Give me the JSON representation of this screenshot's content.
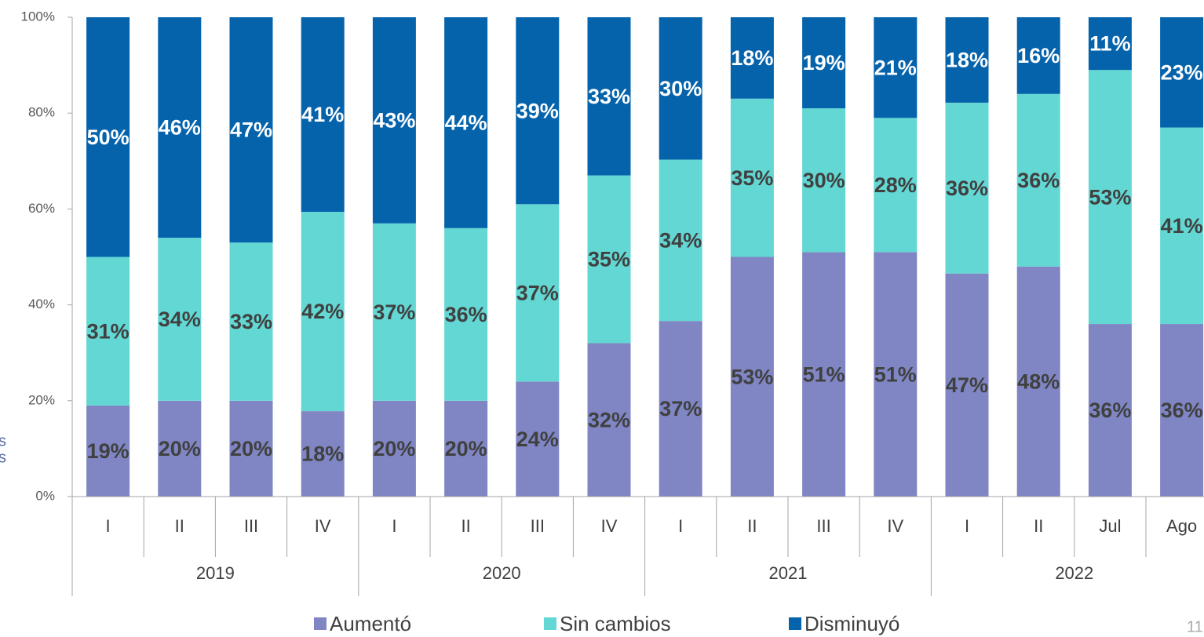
{
  "chart_data": {
    "type": "bar",
    "stacked": "percent",
    "categories": [
      "I",
      "II",
      "III",
      "IV",
      "I",
      "II",
      "III",
      "IV",
      "I",
      "II",
      "III",
      "IV",
      "I",
      "II",
      "Jul",
      "Ago"
    ],
    "group_labels": [
      "2019",
      "2020",
      "2021",
      "2022"
    ],
    "group_sizes": [
      4,
      4,
      4,
      4
    ],
    "series": [
      {
        "name": "Aumentó",
        "color": "#7f86c3",
        "label_color": "#404040",
        "values": [
          19,
          20,
          20,
          18,
          20,
          20,
          24,
          32,
          37,
          53,
          51,
          51,
          47,
          48,
          36,
          36
        ],
        "value_labels": [
          "19%",
          "20%",
          "20%",
          "18%",
          "20%",
          "20%",
          "24%",
          "32%",
          "37%",
          "53%",
          "51%",
          "51%",
          "47%",
          "48%",
          "36%",
          "36%"
        ]
      },
      {
        "name": "Sin cambios",
        "color": "#63d7d3",
        "label_color": "#404040",
        "values": [
          31,
          34,
          33,
          42,
          37,
          36,
          37,
          35,
          34,
          35,
          30,
          28,
          36,
          36,
          53,
          41
        ],
        "value_labels": [
          "31%",
          "34%",
          "33%",
          "42%",
          "37%",
          "36%",
          "37%",
          "35%",
          "34%",
          "35%",
          "30%",
          "28%",
          "36%",
          "36%",
          "53%",
          "41%"
        ]
      },
      {
        "name": "Disminuyó",
        "color": "#0563ab",
        "label_color": "#ffffff",
        "values": [
          50,
          46,
          47,
          41,
          43,
          44,
          39,
          33,
          30,
          18,
          19,
          21,
          18,
          16,
          11,
          23
        ],
        "value_labels": [
          "50%",
          "46%",
          "47%",
          "41%",
          "43%",
          "44%",
          "39%",
          "33%",
          "30%",
          "18%",
          "19%",
          "21%",
          "18%",
          "16%",
          "11%",
          "23%"
        ]
      }
    ],
    "ylim": [
      0,
      100
    ],
    "yticks": [
      {
        "value": 0,
        "label": "0%"
      },
      {
        "value": 20,
        "label": "20%"
      },
      {
        "value": 40,
        "label": "40%"
      },
      {
        "value": 60,
        "label": "60%"
      },
      {
        "value": 80,
        "label": "80%"
      },
      {
        "value": 100,
        "label": "100%"
      }
    ],
    "legend": "bottom",
    "side_text": [
      "s",
      "s"
    ],
    "page_number": "11"
  }
}
